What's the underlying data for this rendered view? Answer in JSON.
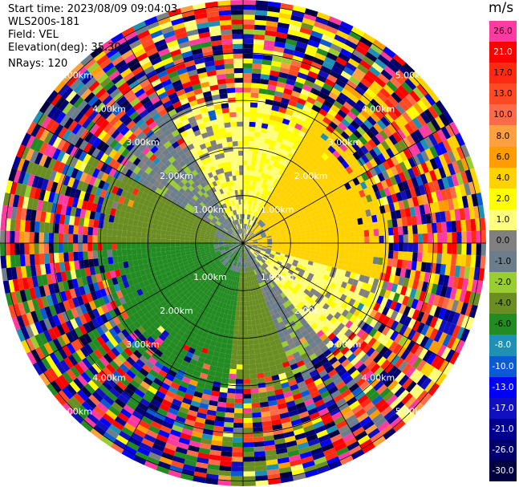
{
  "header": {
    "start_time": "Start time: 2023/08/09 09:04:03",
    "instrument": "WLS200s-181",
    "field": "Field: VEL",
    "elevation": "Elevation(deg): 35.30",
    "nrays": "NRays: 120"
  },
  "colorbar": {
    "unit": "m/s",
    "bins": [
      {
        "label": "26.0",
        "color": "#ff3aa0"
      },
      {
        "label": "21.0",
        "color": "#ff0000"
      },
      {
        "label": "17.0",
        "color": "#ff2a12"
      },
      {
        "label": "13.0",
        "color": "#ff4a24"
      },
      {
        "label": "10.0",
        "color": "#ff6a48"
      },
      {
        "label": "8.0",
        "color": "#ffa040"
      },
      {
        "label": "6.0",
        "color": "#ff9c00"
      },
      {
        "label": "4.0",
        "color": "#ffd200"
      },
      {
        "label": "2.0",
        "color": "#ffff00"
      },
      {
        "label": "1.0",
        "color": "#ffff7a"
      },
      {
        "label": "0.0",
        "color": "#808080"
      },
      {
        "label": "-1.0",
        "color": "#6c7e8c"
      },
      {
        "label": "-2.0",
        "color": "#9acd32"
      },
      {
        "label": "-4.0",
        "color": "#6b8e23"
      },
      {
        "label": "-6.0",
        "color": "#228b22"
      },
      {
        "label": "-8.0",
        "color": "#1e90b4"
      },
      {
        "label": "-10.0",
        "color": "#0a5ad2"
      },
      {
        "label": "-13.0",
        "color": "#0000ff"
      },
      {
        "label": "-17.0",
        "color": "#1010c0"
      },
      {
        "label": "-21.0",
        "color": "#000090"
      },
      {
        "label": "-26.0",
        "color": "#00006a"
      },
      {
        "label": "-30.0",
        "color": "#000040"
      }
    ]
  },
  "chart_data": {
    "type": "heatmap",
    "subtype": "polar-ppi",
    "field": "VEL",
    "units": "m/s",
    "elevation_deg": 35.3,
    "n_rays": 120,
    "range_rings": [
      {
        "label": "1.00km",
        "km": 1
      },
      {
        "label": "2.00km",
        "km": 2
      },
      {
        "label": "3.00km",
        "km": 3
      },
      {
        "label": "4.00km",
        "km": 4
      },
      {
        "label": "5.00km",
        "km": 5
      }
    ],
    "sectors": [
      {
        "from_deg": 0,
        "to_deg": 30,
        "value": 2.0
      },
      {
        "from_deg": 30,
        "to_deg": 105,
        "value": 5.0
      },
      {
        "from_deg": 105,
        "to_deg": 140,
        "value": 1.5
      },
      {
        "from_deg": 140,
        "to_deg": 160,
        "value": -0.5
      },
      {
        "from_deg": 160,
        "to_deg": 185,
        "value": -3.0
      },
      {
        "from_deg": 185,
        "to_deg": 270,
        "value": -5.0
      },
      {
        "from_deg": 270,
        "to_deg": 300,
        "value": -3.0
      },
      {
        "from_deg": 300,
        "to_deg": 330,
        "value": -0.5
      },
      {
        "from_deg": 330,
        "to_deg": 360,
        "value": 1.5
      }
    ]
  }
}
